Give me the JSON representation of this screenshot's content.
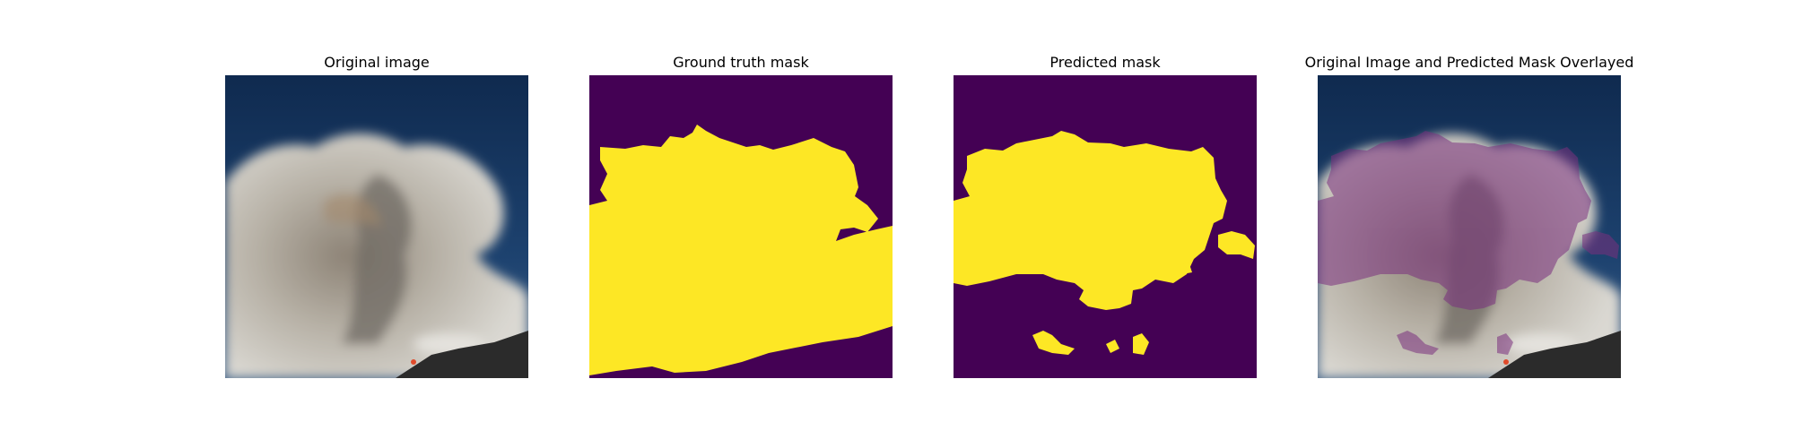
{
  "figure": {
    "panels": [
      {
        "title": "Original image",
        "content": "photo"
      },
      {
        "title": "Ground truth mask",
        "content": "mask"
      },
      {
        "title": "Predicted mask",
        "content": "mask"
      },
      {
        "title": "Original Image and Predicted Mask Overlayed",
        "content": "photo-overlay"
      }
    ]
  },
  "colors": {
    "mask_background": "#440154",
    "mask_foreground": "#fde725",
    "sky": "#16355e",
    "smoke": "#c9c5bc",
    "ground": "#2b2b2b",
    "overlay_tint": "#8a3a8a"
  }
}
